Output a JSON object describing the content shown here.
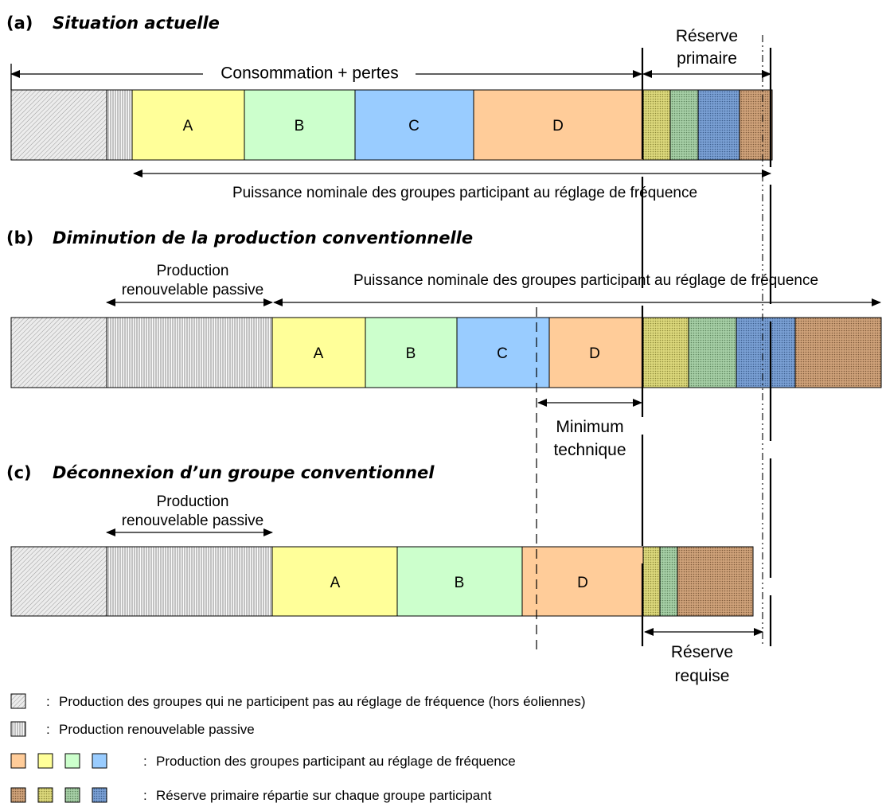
{
  "sections": {
    "a": {
      "tag": "(a)",
      "title": "Situation actuelle"
    },
    "b": {
      "tag": "(b)",
      "title": "Diminution de la production conventionnelle"
    },
    "c": {
      "tag": "(c)",
      "title": "Déconnexion d’un groupe conventionnel"
    }
  },
  "segment_labels": {
    "A": "A",
    "B": "B",
    "C": "C",
    "D": "D"
  },
  "annotations": {
    "reserve_primaire_1": "Réserve",
    "reserve_primaire_2": "primaire",
    "consommation": "Consommation + pertes",
    "puissance_nominale": "Puissance nominale des groupes participant au réglage de fréquence",
    "prod_renouvelable_1": "Production",
    "prod_renouvelable_2": "renouvelable passive",
    "minimum_technique_1": "Minimum",
    "minimum_technique_2": "technique",
    "reserve_requise_1": "Réserve",
    "reserve_requise_2": "requise"
  },
  "legend": {
    "separator": ":",
    "items": [
      "Production des groupes qui ne participent pas au réglage de fréquence (hors éoliennes)",
      "Production renouvelable passive",
      "Production des groupes participant au réglage de fréquence",
      "Réserve primaire répartie sur chaque groupe participant"
    ]
  },
  "colors": {
    "A": "#ffff99",
    "B": "#ccffcc",
    "C": "#99ccff",
    "D": "#ffcc99",
    "reserve_A": "#d6d27a",
    "reserve_B": "#9cc89c",
    "reserve_C": "#6f94c8",
    "reserve_D": "#c79a70",
    "non_participating": "#e6e6e6",
    "renewable": "#f2f2f2"
  }
}
